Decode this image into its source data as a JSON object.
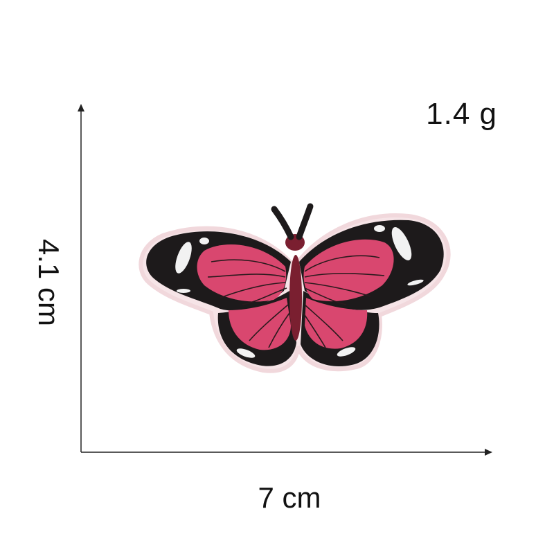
{
  "product": {
    "name": "butterfly embroidered patch",
    "weight": "1.4 g",
    "width": "7 cm",
    "height": "4.1 cm"
  },
  "colors": {
    "wing_pink": "#d9476f",
    "wing_black": "#1d1a1b",
    "body": "#7a1f30",
    "border": "#f3dfe2"
  }
}
